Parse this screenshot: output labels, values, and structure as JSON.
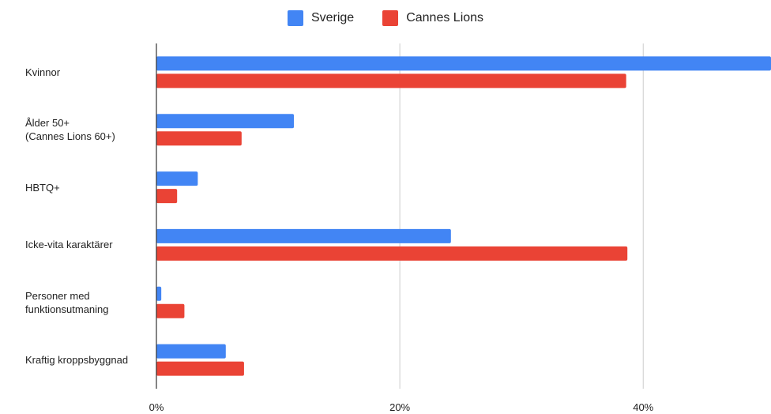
{
  "chart_data": {
    "type": "bar",
    "orientation": "horizontal",
    "title": "",
    "xlabel": "",
    "ylabel": "",
    "categories": [
      "Kvinnor",
      "Ålder 50+\n(Cannes Lions 60+)",
      "HBTQ+",
      "Icke-vita karaktärer",
      "Personer med\nfunktionsutmaning",
      "Kraftig kroppsbyggnad"
    ],
    "series": [
      {
        "name": "Sverige",
        "color": "#4285f4",
        "values": [
          50.5,
          11.3,
          3.4,
          24.2,
          0.4,
          5.7
        ]
      },
      {
        "name": "Cannes Lions",
        "color": "#ea4335",
        "values": [
          38.6,
          7.0,
          1.7,
          38.7,
          2.3,
          7.2
        ]
      }
    ],
    "xlim": [
      0,
      50.5
    ],
    "xticks": [
      0,
      20,
      40
    ],
    "xtick_labels": [
      "0%",
      "20%",
      "40%"
    ],
    "grid": true,
    "legend_position": "top"
  }
}
